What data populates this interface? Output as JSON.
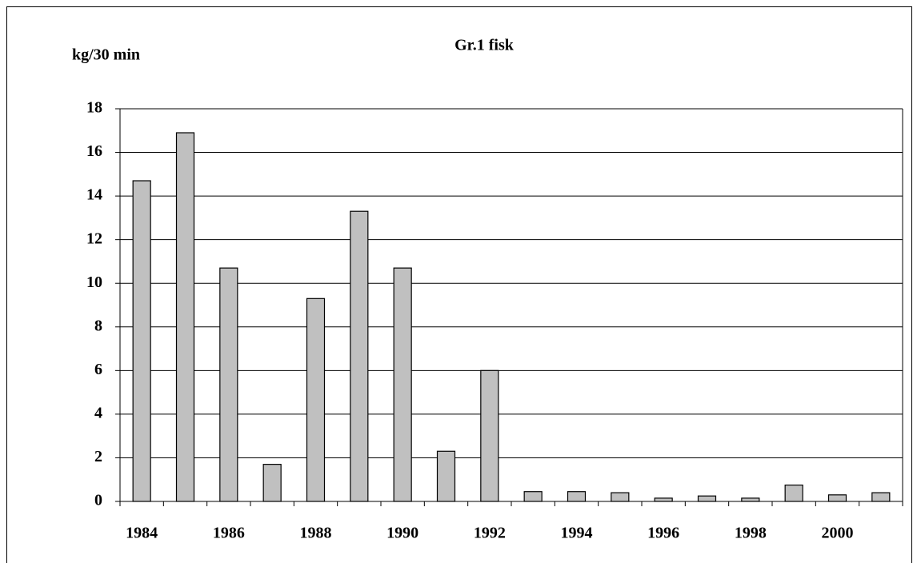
{
  "chart_data": {
    "type": "bar",
    "title": "Gr.1 fisk",
    "y_label": "kg/30 min",
    "categories": [
      "1984",
      null,
      "1986",
      null,
      "1988",
      null,
      "1990",
      null,
      "1992",
      null,
      "1994",
      null,
      "1996",
      null,
      "1998",
      null,
      "2000",
      null
    ],
    "values": [
      14.7,
      16.9,
      10.7,
      1.7,
      9.3,
      13.3,
      10.7,
      2.3,
      6.0,
      0.45,
      0.45,
      0.4,
      0.15,
      0.25,
      0.15,
      0.75,
      0.3,
      0.4
    ],
    "color": "#c0c0c0",
    "ylim": [
      0,
      18
    ],
    "yticks": [
      0,
      2,
      4,
      6,
      8,
      10,
      12,
      14,
      16,
      18
    ],
    "grid": true
  }
}
